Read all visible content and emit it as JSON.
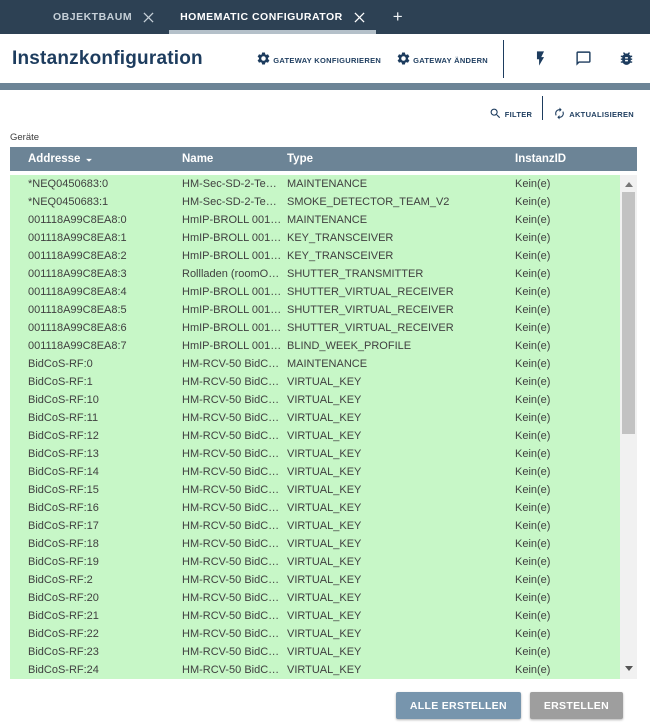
{
  "tabs": {
    "items": [
      {
        "label": "OBJEKTBAUM",
        "active": false
      },
      {
        "label": "HOMEMATIC CONFIGURATOR",
        "active": true
      }
    ],
    "add_label": "+"
  },
  "header": {
    "title": "Instanzkonfiguration",
    "gateway_configure_label": "GATEWAY KONFIGURIEREN",
    "gateway_change_label": "GATEWAY ÄNDERN",
    "icons": [
      "flash-icon",
      "chat-bubble-icon",
      "bug-icon"
    ]
  },
  "toolbar": {
    "filter_label": "FILTER",
    "refresh_label": "AKTUALISIEREN"
  },
  "table": {
    "caption": "Geräte",
    "columns": [
      "Addresse",
      "Name",
      "Type",
      "InstanzID"
    ],
    "column_keys": [
      "addresse",
      "name",
      "type",
      "instanzid"
    ],
    "sort_column": "Addresse",
    "sort_icon": "sort-descending-triangle",
    "rows": [
      [
        "*NEQ0450683:0",
        "HM-Sec-SD-2-Te…",
        "MAINTENANCE",
        "Kein(e)"
      ],
      [
        "*NEQ0450683:1",
        "HM-Sec-SD-2-Te…",
        "SMOKE_DETECTOR_TEAM_V2",
        "Kein(e)"
      ],
      [
        "001118A99C8EA8:0",
        "HmIP-BROLL 001…",
        "MAINTENANCE",
        "Kein(e)"
      ],
      [
        "001118A99C8EA8:1",
        "HmIP-BROLL 001…",
        "KEY_TRANSCEIVER",
        "Kein(e)"
      ],
      [
        "001118A99C8EA8:2",
        "HmIP-BROLL 001…",
        "KEY_TRANSCEIVER",
        "Kein(e)"
      ],
      [
        "001118A99C8EA8:3",
        "Rollladen (roomO…",
        "SHUTTER_TRANSMITTER",
        "Kein(e)"
      ],
      [
        "001118A99C8EA8:4",
        "HmIP-BROLL 001…",
        "SHUTTER_VIRTUAL_RECEIVER",
        "Kein(e)"
      ],
      [
        "001118A99C8EA8:5",
        "HmIP-BROLL 001…",
        "SHUTTER_VIRTUAL_RECEIVER",
        "Kein(e)"
      ],
      [
        "001118A99C8EA8:6",
        "HmIP-BROLL 001…",
        "SHUTTER_VIRTUAL_RECEIVER",
        "Kein(e)"
      ],
      [
        "001118A99C8EA8:7",
        "HmIP-BROLL 001…",
        "BLIND_WEEK_PROFILE",
        "Kein(e)"
      ],
      [
        "BidCoS-RF:0",
        "HM-RCV-50 BidC…",
        "MAINTENANCE",
        "Kein(e)"
      ],
      [
        "BidCoS-RF:1",
        "HM-RCV-50 BidC…",
        "VIRTUAL_KEY",
        "Kein(e)"
      ],
      [
        "BidCoS-RF:10",
        "HM-RCV-50 BidC…",
        "VIRTUAL_KEY",
        "Kein(e)"
      ],
      [
        "BidCoS-RF:11",
        "HM-RCV-50 BidC…",
        "VIRTUAL_KEY",
        "Kein(e)"
      ],
      [
        "BidCoS-RF:12",
        "HM-RCV-50 BidC…",
        "VIRTUAL_KEY",
        "Kein(e)"
      ],
      [
        "BidCoS-RF:13",
        "HM-RCV-50 BidC…",
        "VIRTUAL_KEY",
        "Kein(e)"
      ],
      [
        "BidCoS-RF:14",
        "HM-RCV-50 BidC…",
        "VIRTUAL_KEY",
        "Kein(e)"
      ],
      [
        "BidCoS-RF:15",
        "HM-RCV-50 BidC…",
        "VIRTUAL_KEY",
        "Kein(e)"
      ],
      [
        "BidCoS-RF:16",
        "HM-RCV-50 BidC…",
        "VIRTUAL_KEY",
        "Kein(e)"
      ],
      [
        "BidCoS-RF:17",
        "HM-RCV-50 BidC…",
        "VIRTUAL_KEY",
        "Kein(e)"
      ],
      [
        "BidCoS-RF:18",
        "HM-RCV-50 BidC…",
        "VIRTUAL_KEY",
        "Kein(e)"
      ],
      [
        "BidCoS-RF:19",
        "HM-RCV-50 BidC…",
        "VIRTUAL_KEY",
        "Kein(e)"
      ],
      [
        "BidCoS-RF:2",
        "HM-RCV-50 BidC…",
        "VIRTUAL_KEY",
        "Kein(e)"
      ],
      [
        "BidCoS-RF:20",
        "HM-RCV-50 BidC…",
        "VIRTUAL_KEY",
        "Kein(e)"
      ],
      [
        "BidCoS-RF:21",
        "HM-RCV-50 BidC…",
        "VIRTUAL_KEY",
        "Kein(e)"
      ],
      [
        "BidCoS-RF:22",
        "HM-RCV-50 BidC…",
        "VIRTUAL_KEY",
        "Kein(e)"
      ],
      [
        "BidCoS-RF:23",
        "HM-RCV-50 BidC…",
        "VIRTUAL_KEY",
        "Kein(e)"
      ],
      [
        "BidCoS-RF:24",
        "HM-RCV-50 BidC…",
        "VIRTUAL_KEY",
        "Kein(e)"
      ]
    ]
  },
  "footer": {
    "create_all_label": "ALLE ERSTELLEN",
    "create_label": "ERSTELLEN"
  },
  "colors": {
    "tabbar_bg": "#2d4154",
    "tab_underline": "#b4c0c9",
    "accent_navy": "#1d3c5e",
    "section_bar": "#6c8496",
    "row_green": "#c7f7c7",
    "button_primary": "#7795ad",
    "button_disabled": "#9e9e9e"
  }
}
